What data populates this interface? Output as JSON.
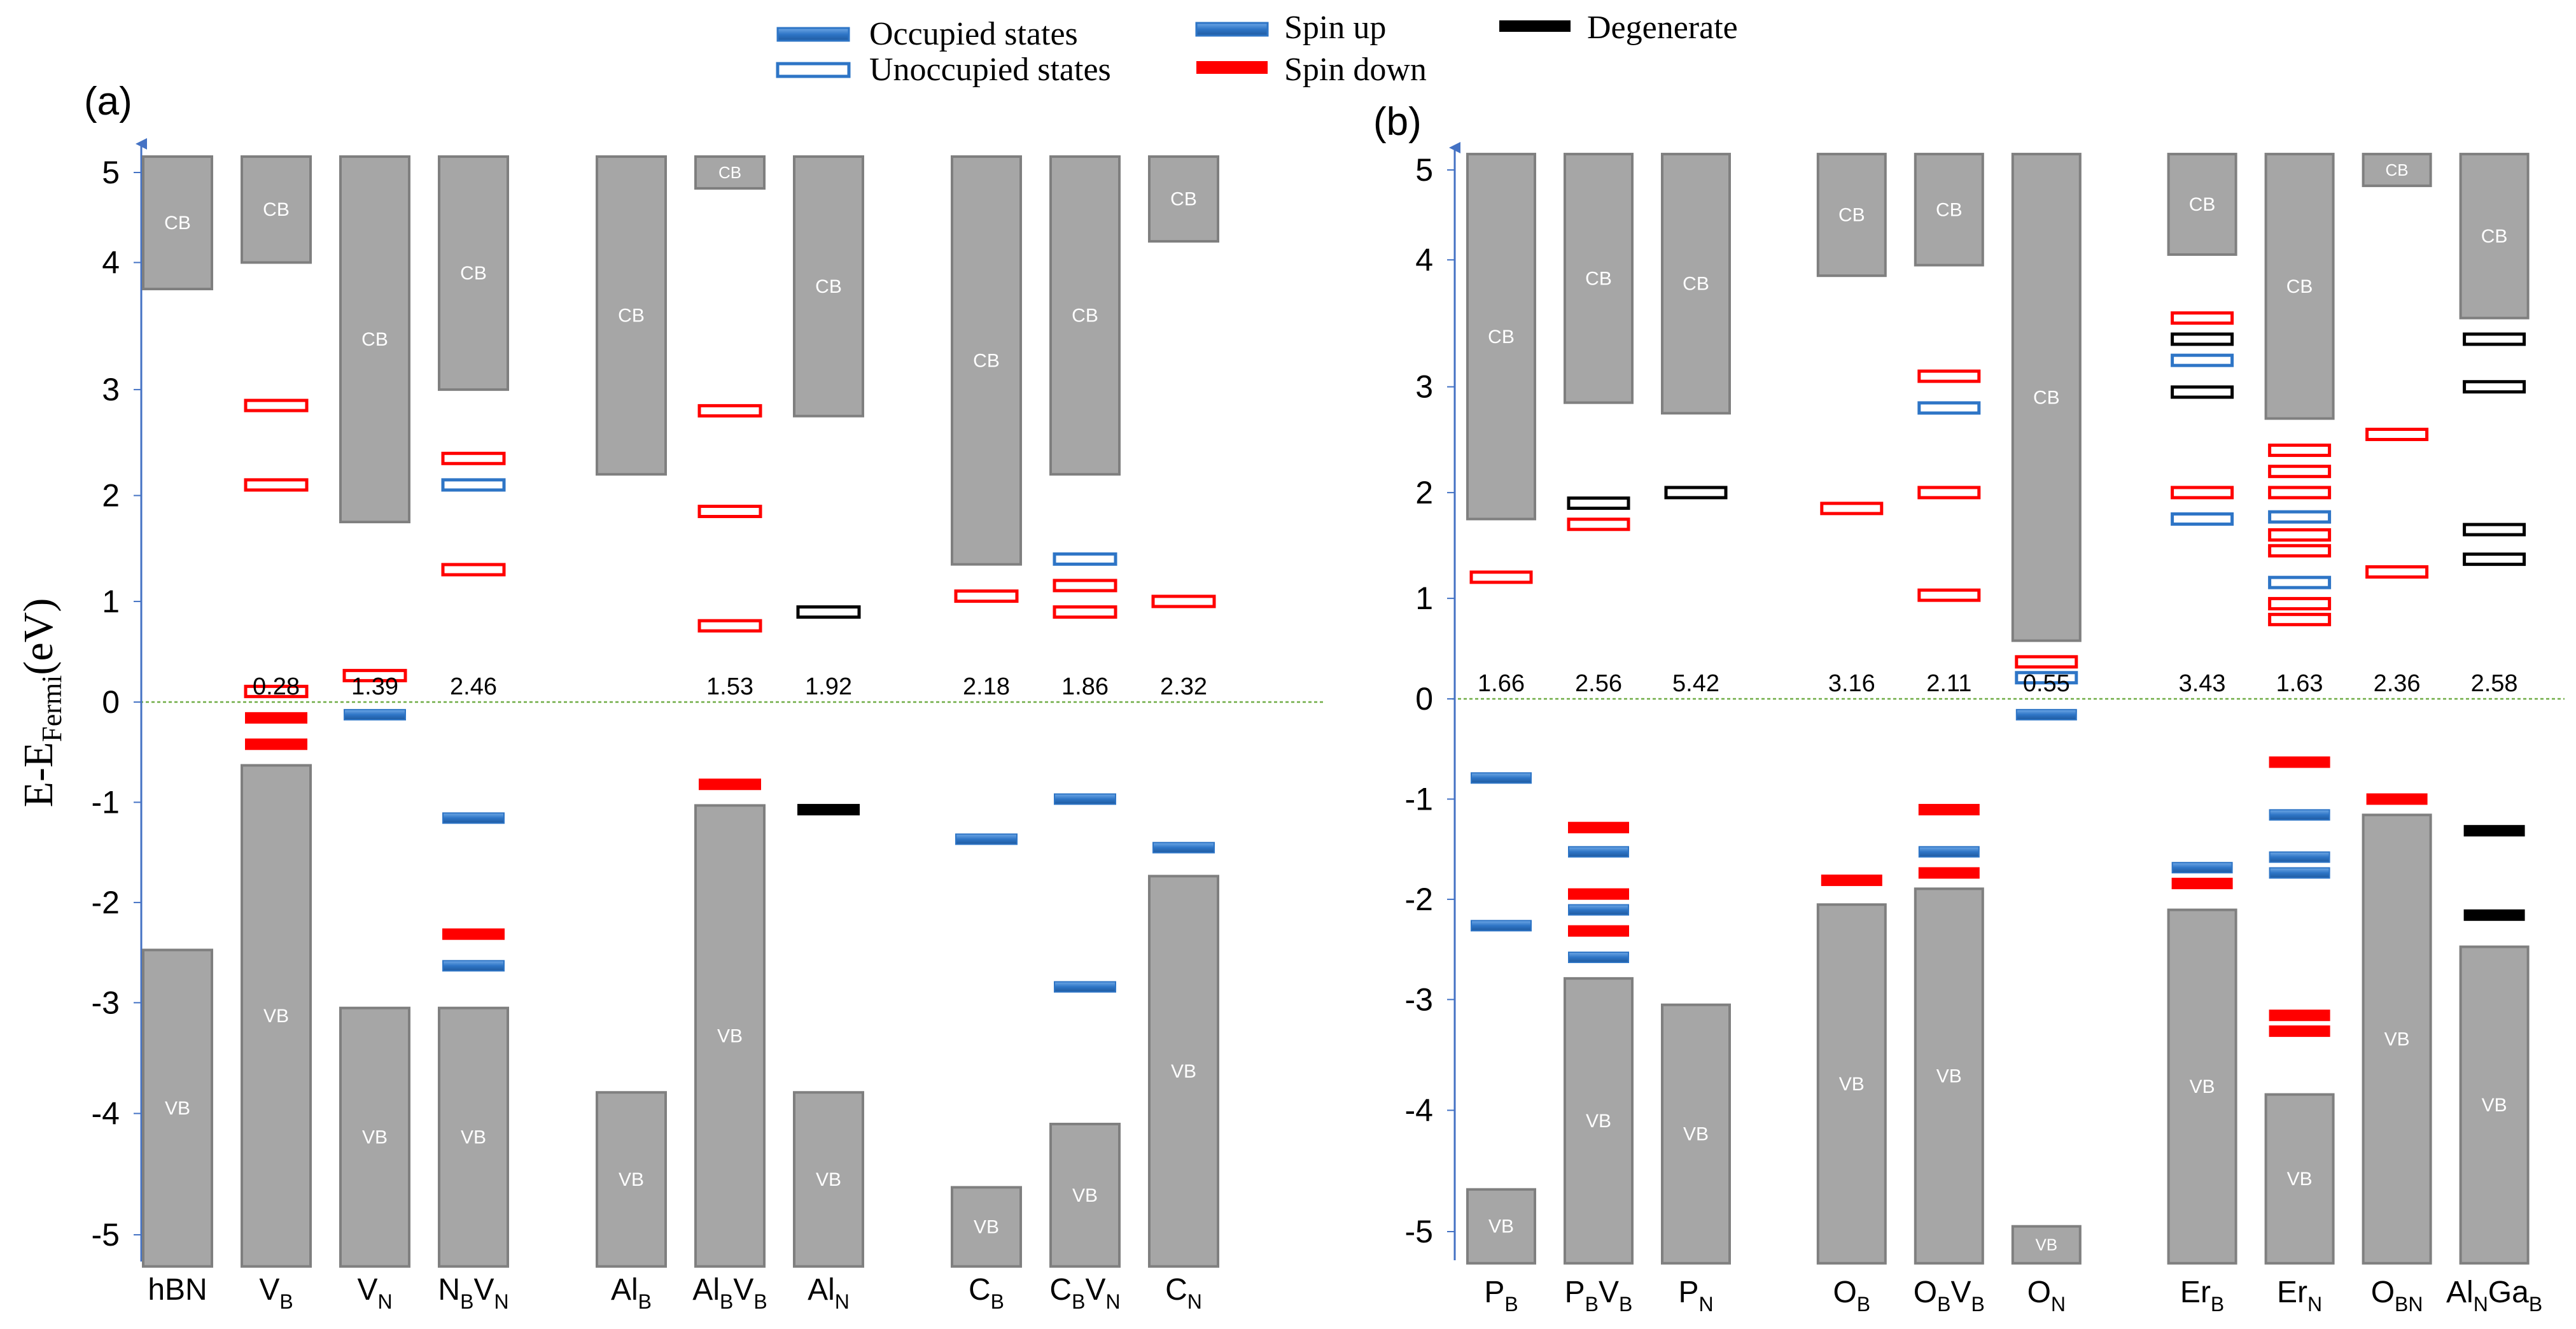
{
  "chart_data": [
    {
      "panel_label": "(a)",
      "type": "band-diagram",
      "ylabel": "E-E",
      "ylabel_sub": "Fermi",
      "ylabel_unit": "(eV)",
      "ylim": [
        -5.35,
        5.35
      ],
      "yticks": [
        5,
        4,
        3,
        2,
        1,
        0,
        -1,
        -2,
        -3,
        -4,
        -5
      ],
      "yticks_pos": [
        5.0,
        4.15,
        2.95,
        1.95,
        0.95,
        0.0,
        -0.95,
        -1.9,
        -2.85,
        -3.9,
        -5.05
      ],
      "columns": [
        {
          "name": "hBN",
          "x": 0,
          "cb": [
            3.9,
            5.15
          ],
          "vb": [
            -5.35,
            -2.35
          ],
          "gap": ""
        },
        {
          "name": "VB",
          "base": "V",
          "sub": "B",
          "x": 1,
          "cb": [
            4.15,
            5.15
          ],
          "vb": [
            -5.35,
            -0.6
          ],
          "gap": "0.28",
          "levels": [
            {
              "e": 2.8,
              "type": "unocc",
              "spin": "down"
            },
            {
              "e": 2.05,
              "type": "unocc",
              "spin": "down"
            },
            {
              "e": 0.1,
              "type": "unocc",
              "spin": "down"
            },
            {
              "e": -0.15,
              "type": "occ",
              "spin": "down"
            },
            {
              "e": -0.4,
              "type": "occ",
              "spin": "down"
            }
          ]
        },
        {
          "name": "VN",
          "base": "V",
          "sub": "N",
          "x": 2,
          "cb": [
            1.7,
            5.15
          ],
          "vb": [
            -5.35,
            -2.9
          ],
          "gap": "1.39",
          "levels": [
            {
              "e": 0.25,
              "type": "unocc",
              "spin": "down"
            },
            {
              "e": -0.12,
              "type": "occ",
              "spin": "up"
            }
          ]
        },
        {
          "name": "NBVN",
          "parts": [
            [
              "N",
              "B"
            ],
            [
              "V",
              "N"
            ]
          ],
          "x": 3,
          "cb": [
            2.95,
            5.15
          ],
          "vb": [
            -5.35,
            -2.9
          ],
          "gap": "2.46",
          "levels": [
            {
              "e": 2.3,
              "type": "unocc",
              "spin": "down"
            },
            {
              "e": 2.05,
              "type": "unocc",
              "spin": "up"
            },
            {
              "e": 1.25,
              "type": "unocc",
              "spin": "down"
            },
            {
              "e": -1.1,
              "type": "occ",
              "spin": "up"
            },
            {
              "e": -2.2,
              "type": "occ",
              "spin": "down"
            },
            {
              "e": -2.5,
              "type": "occ",
              "spin": "up"
            }
          ]
        },
        {
          "name": "AlB",
          "base": "Al",
          "sub": "B",
          "x": 4.6,
          "cb": [
            2.15,
            5.15
          ],
          "vb": [
            -5.35,
            -3.7
          ],
          "gap": ""
        },
        {
          "name": "AlBVB",
          "parts": [
            [
              "Al",
              "B"
            ],
            [
              "V",
              "B"
            ]
          ],
          "x": 5.6,
          "cb": [
            4.85,
            5.15
          ],
          "vb": [
            -5.35,
            -0.98
          ],
          "gap": "1.53",
          "levels": [
            {
              "e": 2.75,
              "type": "unocc",
              "spin": "down"
            },
            {
              "e": 1.8,
              "type": "unocc",
              "spin": "down"
            },
            {
              "e": 0.72,
              "type": "unocc",
              "spin": "down"
            },
            {
              "e": -0.78,
              "type": "occ",
              "spin": "down"
            }
          ]
        },
        {
          "name": "AlN",
          "base": "Al",
          "sub": "N",
          "x": 6.6,
          "cb": [
            2.7,
            5.15
          ],
          "vb": [
            -5.35,
            -3.7
          ],
          "gap": "1.92",
          "levels": [
            {
              "e": 0.85,
              "type": "unocc",
              "spin": "degen"
            },
            {
              "e": -1.02,
              "type": "occ",
              "spin": "degen"
            }
          ]
        },
        {
          "name": "CB",
          "base": "C",
          "sub": "B",
          "x": 8.2,
          "cb": [
            1.3,
            5.15
          ],
          "vb": [
            -5.35,
            -4.6
          ],
          "gap": "2.18",
          "levels": [
            {
              "e": 1.0,
              "type": "unocc",
              "spin": "down"
            },
            {
              "e": -1.3,
              "type": "occ",
              "spin": "up"
            }
          ]
        },
        {
          "name": "CBVN",
          "parts": [
            [
              "C",
              "B"
            ],
            [
              "V",
              "N"
            ]
          ],
          "x": 9.2,
          "cb": [
            2.15,
            5.15
          ],
          "vb": [
            -5.35,
            -4.0
          ],
          "gap": "1.86",
          "levels": [
            {
              "e": 1.35,
              "type": "unocc",
              "spin": "up"
            },
            {
              "e": 1.1,
              "type": "unocc",
              "spin": "down"
            },
            {
              "e": 0.85,
              "type": "unocc",
              "spin": "down"
            },
            {
              "e": -0.92,
              "type": "occ",
              "spin": "up"
            },
            {
              "e": -2.7,
              "type": "occ",
              "spin": "up"
            }
          ]
        },
        {
          "name": "CN",
          "base": "C",
          "sub": "N",
          "x": 10.2,
          "cb": [
            4.35,
            5.15
          ],
          "vb": [
            -5.35,
            -1.65
          ],
          "gap": "2.32",
          "levels": [
            {
              "e": 0.95,
              "type": "unocc",
              "spin": "down"
            },
            {
              "e": -1.38,
              "type": "occ",
              "spin": "up"
            }
          ]
        }
      ]
    },
    {
      "panel_label": "(b)",
      "type": "band-diagram",
      "ylim": [
        -5.35,
        5.35
      ],
      "yticks": [
        5,
        4,
        3,
        2,
        1,
        0,
        -1,
        -2,
        -3,
        -4,
        -5
      ],
      "yticks_pos": [
        5.0,
        4.15,
        2.95,
        1.95,
        0.95,
        0.0,
        -0.95,
        -1.9,
        -2.85,
        -3.9,
        -5.05
      ],
      "columns": [
        {
          "name": "PB",
          "base": "P",
          "sub": "B",
          "x": 0,
          "cb": [
            1.7,
            5.15
          ],
          "vb": [
            -5.35,
            -4.65
          ],
          "gap": "1.66",
          "levels": [
            {
              "e": 1.15,
              "type": "unocc",
              "spin": "down"
            },
            {
              "e": -0.75,
              "type": "occ",
              "spin": "up"
            },
            {
              "e": -2.15,
              "type": "occ",
              "spin": "up"
            }
          ]
        },
        {
          "name": "PBVB",
          "parts": [
            [
              "P",
              "B"
            ],
            [
              "V",
              "B"
            ]
          ],
          "x": 1,
          "cb": [
            2.8,
            5.15
          ],
          "vb": [
            -5.35,
            -2.65
          ],
          "gap": "2.56",
          "levels": [
            {
              "e": 1.85,
              "type": "unocc",
              "spin": "degen"
            },
            {
              "e": 1.65,
              "type": "unocc",
              "spin": "down"
            },
            {
              "e": -1.22,
              "type": "occ",
              "spin": "down"
            },
            {
              "e": -1.45,
              "type": "occ",
              "spin": "up"
            },
            {
              "e": -1.85,
              "type": "occ",
              "spin": "down"
            },
            {
              "e": -2.0,
              "type": "occ",
              "spin": "up"
            },
            {
              "e": -2.2,
              "type": "occ",
              "spin": "down"
            },
            {
              "e": -2.45,
              "type": "occ",
              "spin": "up"
            }
          ]
        },
        {
          "name": "PN",
          "base": "P",
          "sub": "N",
          "x": 2,
          "cb": [
            2.7,
            5.15
          ],
          "vb": [
            -5.35,
            -2.9
          ],
          "gap": "5.42",
          "levels": [
            {
              "e": 1.95,
              "type": "unocc",
              "spin": "degen"
            }
          ]
        },
        {
          "name": "OB",
          "base": "O",
          "sub": "B",
          "x": 3.6,
          "cb": [
            4.0,
            5.15
          ],
          "vb": [
            -5.35,
            -1.95
          ],
          "gap": "3.16",
          "levels": [
            {
              "e": 1.8,
              "type": "unocc",
              "spin": "down"
            },
            {
              "e": -1.72,
              "type": "occ",
              "spin": "down"
            }
          ]
        },
        {
          "name": "OBVB",
          "parts": [
            [
              "O",
              "B"
            ],
            [
              "V",
              "B"
            ]
          ],
          "x": 4.6,
          "cb": [
            4.1,
            5.15
          ],
          "vb": [
            -5.35,
            -1.8
          ],
          "gap": "2.11",
          "levels": [
            {
              "e": 3.05,
              "type": "unocc",
              "spin": "down"
            },
            {
              "e": 2.75,
              "type": "unocc",
              "spin": "up"
            },
            {
              "e": 1.95,
              "type": "unocc",
              "spin": "down"
            },
            {
              "e": 0.98,
              "type": "unocc",
              "spin": "down"
            },
            {
              "e": -1.05,
              "type": "occ",
              "spin": "down"
            },
            {
              "e": -1.45,
              "type": "occ",
              "spin": "up"
            },
            {
              "e": -1.65,
              "type": "occ",
              "spin": "down"
            }
          ]
        },
        {
          "name": "ON",
          "base": "O",
          "sub": "N",
          "x": 5.6,
          "cb": [
            0.55,
            5.15
          ],
          "vb": [
            -5.35,
            -5.0
          ],
          "gap": "0.55",
          "levels": [
            {
              "e": 0.35,
              "type": "unocc",
              "spin": "down"
            },
            {
              "e": 0.2,
              "type": "unocc",
              "spin": "up"
            },
            {
              "e": -0.15,
              "type": "occ",
              "spin": "up"
            }
          ]
        },
        {
          "name": "ErB",
          "base": "Er",
          "sub": "B",
          "x": 7.2,
          "cb": [
            4.2,
            5.15
          ],
          "vb": [
            -5.35,
            -2.0
          ],
          "gap": "3.43",
          "levels": [
            {
              "e": 3.6,
              "type": "unocc",
              "spin": "down"
            },
            {
              "e": 3.4,
              "type": "unocc",
              "spin": "degen"
            },
            {
              "e": 3.2,
              "type": "unocc",
              "spin": "up"
            },
            {
              "e": 2.9,
              "type": "unocc",
              "spin": "degen"
            },
            {
              "e": 1.95,
              "type": "unocc",
              "spin": "down"
            },
            {
              "e": 1.7,
              "type": "unocc",
              "spin": "up"
            },
            {
              "e": -1.6,
              "type": "occ",
              "spin": "up"
            },
            {
              "e": -1.75,
              "type": "occ",
              "spin": "down"
            }
          ]
        },
        {
          "name": "ErN",
          "base": "Er",
          "sub": "N",
          "x": 8.2,
          "cb": [
            2.65,
            5.15
          ],
          "vb": [
            -5.35,
            -3.75
          ],
          "gap": "1.63",
          "levels": [
            {
              "e": 2.35,
              "type": "unocc",
              "spin": "down"
            },
            {
              "e": 2.15,
              "type": "unocc",
              "spin": "down"
            },
            {
              "e": 1.95,
              "type": "unocc",
              "spin": "down"
            },
            {
              "e": 1.72,
              "type": "unocc",
              "spin": "up"
            },
            {
              "e": 1.55,
              "type": "unocc",
              "spin": "down"
            },
            {
              "e": 1.4,
              "type": "unocc",
              "spin": "down"
            },
            {
              "e": 1.1,
              "type": "unocc",
              "spin": "up"
            },
            {
              "e": 0.9,
              "type": "unocc",
              "spin": "down"
            },
            {
              "e": 0.75,
              "type": "unocc",
              "spin": "down"
            },
            {
              "e": -0.6,
              "type": "occ",
              "spin": "down"
            },
            {
              "e": -1.1,
              "type": "occ",
              "spin": "up"
            },
            {
              "e": -1.5,
              "type": "occ",
              "spin": "up"
            },
            {
              "e": -1.65,
              "type": "occ",
              "spin": "up"
            },
            {
              "e": -3.0,
              "type": "occ",
              "spin": "down"
            },
            {
              "e": -3.15,
              "type": "occ",
              "spin": "down"
            }
          ]
        },
        {
          "name": "OBN",
          "base": "O",
          "sub": "BN",
          "x": 9.2,
          "cb": [
            4.85,
            5.15
          ],
          "vb": [
            -5.35,
            -1.1
          ],
          "gap": "2.36",
          "levels": [
            {
              "e": 2.5,
              "type": "unocc",
              "spin": "down"
            },
            {
              "e": 1.2,
              "type": "unocc",
              "spin": "down"
            },
            {
              "e": -0.95,
              "type": "occ",
              "spin": "down"
            }
          ]
        },
        {
          "name": "AlNGaB",
          "parts": [
            [
              "Al",
              "N"
            ],
            [
              "Ga",
              "B"
            ]
          ],
          "x": 10.2,
          "cb": [
            3.6,
            5.15
          ],
          "vb": [
            -5.35,
            -2.35
          ],
          "gap": "2.58",
          "levels": [
            {
              "e": 3.4,
              "type": "unocc",
              "spin": "degen"
            },
            {
              "e": 2.95,
              "type": "unocc",
              "spin": "degen"
            },
            {
              "e": 1.6,
              "type": "unocc",
              "spin": "degen"
            },
            {
              "e": 1.32,
              "type": "unocc",
              "spin": "degen"
            },
            {
              "e": -1.25,
              "type": "occ",
              "spin": "degen"
            },
            {
              "e": -2.05,
              "type": "occ",
              "spin": "degen"
            }
          ]
        }
      ]
    }
  ],
  "legend": {
    "occupied": "Occupied states",
    "unoccupied": "Unoccupied states",
    "spin_up": "Spin up",
    "spin_down": "Spin down",
    "degenerate": "Degenerate"
  },
  "box_labels": {
    "cb": "CB",
    "vb": "VB"
  },
  "colors": {
    "band_fill": "#a6a6a6",
    "band_stroke": "#7f7f7f",
    "spin_up": "#2e75c6",
    "spin_down": "#ff0000",
    "degenerate": "#000000",
    "axis": "#4472c4",
    "fermi_line": "#70ad47"
  }
}
